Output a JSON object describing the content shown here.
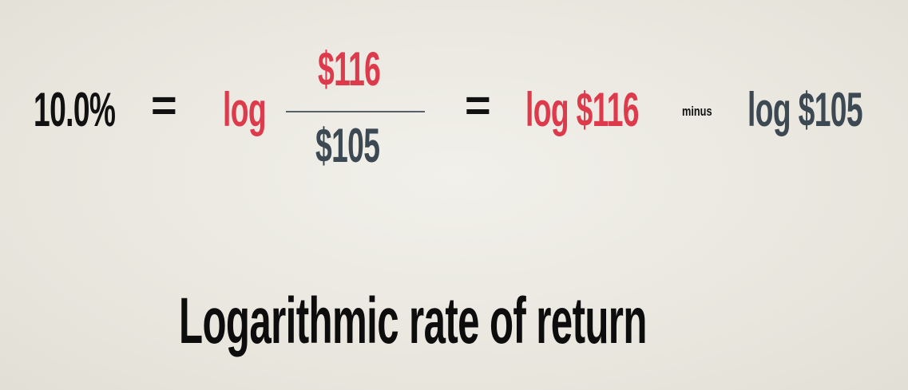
{
  "equation": {
    "rate": "10.0%",
    "equals": "=",
    "log": "log",
    "numerator": "$116",
    "denominator": "$105",
    "term_one": "log $116",
    "minus": "minus",
    "term_two": "log $105"
  },
  "caption": "Logarithmic rate of return",
  "colors": {
    "dark_text": "#111111",
    "red_text": "#dd3a4c",
    "slate_text": "#3c4852",
    "background": "#ebe9e1"
  }
}
